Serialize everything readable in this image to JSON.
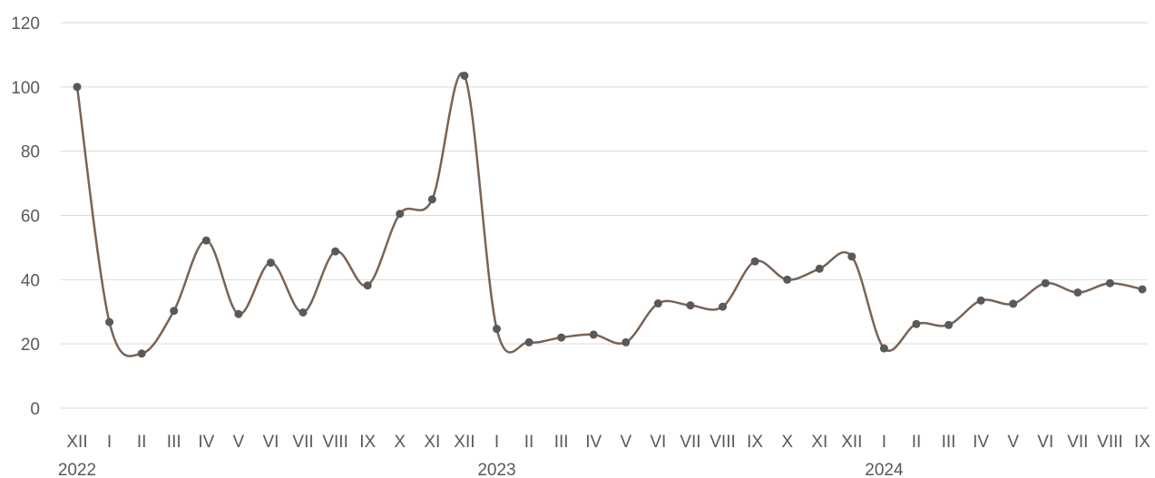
{
  "chart_data": {
    "type": "line",
    "title": "",
    "xlabel": "",
    "ylabel": "",
    "ylim": [
      0,
      120
    ],
    "yticks": [
      0,
      20,
      40,
      60,
      80,
      100,
      120
    ],
    "grid": true,
    "legend": "none",
    "smooth": true,
    "categories": [
      "XII",
      "I",
      "II",
      "III",
      "IV",
      "V",
      "VI",
      "VII",
      "VIII",
      "IX",
      "X",
      "XI",
      "XII",
      "I",
      "II",
      "III",
      "IV",
      "V",
      "VI",
      "VII",
      "VIII",
      "IX",
      "X",
      "XI",
      "XII",
      "I",
      "II",
      "III",
      "IV",
      "V",
      "VI",
      "VII",
      "VIII",
      "IX"
    ],
    "year_groups": [
      {
        "label": "2022",
        "start_index": 0
      },
      {
        "label": "2023",
        "start_index": 13
      },
      {
        "label": "2024",
        "start_index": 25
      }
    ],
    "series": [
      {
        "values": [
          100,
          26.8,
          17,
          30.3,
          52.2,
          29.3,
          45.3,
          29.8,
          48.8,
          38.2,
          60.5,
          65,
          103.5,
          24.7,
          20.5,
          22,
          22.9,
          20.5,
          32.6,
          32,
          31.6,
          45.7,
          40,
          43.4,
          47.2,
          18.6,
          26.2,
          25.9,
          33.5,
          32.5,
          38.9,
          36,
          38.9,
          37
        ]
      }
    ],
    "colors": {
      "line": "#7a6354",
      "marker": "#595959",
      "grid": "#d9d9d9",
      "text": "#595959"
    }
  }
}
